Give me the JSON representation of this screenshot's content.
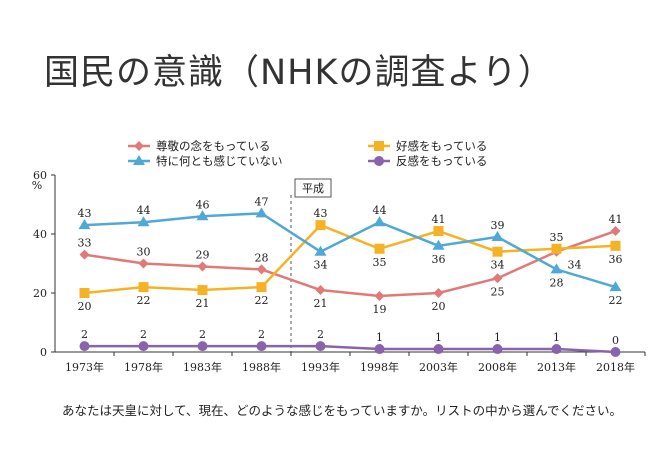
{
  "page": {
    "title": "国民の意識（NHKの調査より）",
    "question": "あなたは天皇に対して、現在、どのような感じをもっていますか。リストの中から選んでください。"
  },
  "chart_data": {
    "type": "line",
    "unit_label": "%",
    "ylim": [
      0,
      60
    ],
    "yticks": [
      0,
      20,
      40,
      60
    ],
    "x": [
      "1973年",
      "1978年",
      "1983年",
      "1988年",
      "1993年",
      "1998年",
      "2003年",
      "2008年",
      "2013年",
      "2018年"
    ],
    "annotation": {
      "label": "平成",
      "after_index": 3
    },
    "legend_position": "top",
    "series": [
      {
        "name": "尊敬の念をもっている",
        "color": "#e07a78",
        "marker": "diamond",
        "values": [
          33,
          30,
          29,
          28,
          21,
          19,
          20,
          25,
          34,
          41
        ]
      },
      {
        "name": "好感をもっている",
        "color": "#f5b225",
        "marker": "square",
        "values": [
          20,
          22,
          21,
          22,
          43,
          35,
          41,
          34,
          35,
          36
        ]
      },
      {
        "name": "特に何とも感じていない",
        "color": "#4fa8d6",
        "marker": "triangle",
        "values": [
          43,
          44,
          46,
          47,
          34,
          44,
          36,
          39,
          28,
          22
        ]
      },
      {
        "name": "反感をもっている",
        "color": "#8a63ad",
        "marker": "circle",
        "values": [
          2,
          2,
          2,
          2,
          2,
          1,
          1,
          1,
          1,
          0
        ]
      }
    ]
  }
}
